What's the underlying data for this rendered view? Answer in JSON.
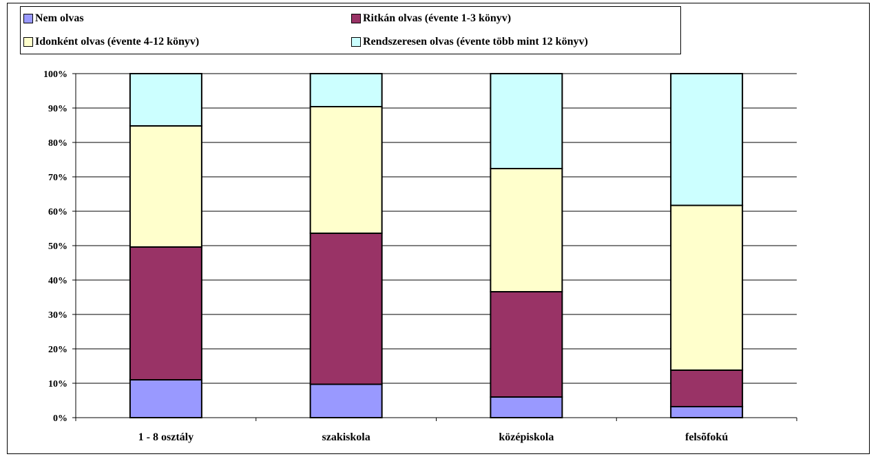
{
  "chart_data": {
    "type": "bar",
    "stacked": true,
    "normalized": true,
    "categories": [
      "1 - 8 osztály",
      "szakiskola",
      "középiskola",
      "felsõfokú"
    ],
    "series": [
      {
        "name": "Nem olvas",
        "color": "#9999FF",
        "values": [
          11,
          9.7,
          6,
          3.2
        ]
      },
      {
        "name": "Ritkán olvas (évente 1-3 könyv)",
        "color": "#993366",
        "values": [
          38.6,
          43.9,
          30.6,
          10.6
        ]
      },
      {
        "name": "Idonként olvas (évente 4-12 könyv)",
        "color": "#FFFFCC",
        "values": [
          35.2,
          36.8,
          35.8,
          47.9
        ]
      },
      {
        "name": "Rendszeresen olvas (évente több mint 12 könyv)",
        "color": "#CCFFFF",
        "values": [
          15.2,
          9.6,
          27.6,
          38.3
        ]
      }
    ],
    "yticks": [
      "0%",
      "10%",
      "20%",
      "30%",
      "40%",
      "50%",
      "60%",
      "70%",
      "80%",
      "90%",
      "100%"
    ],
    "ylim": [
      0,
      100
    ],
    "grid": true,
    "legend_position": "top"
  }
}
